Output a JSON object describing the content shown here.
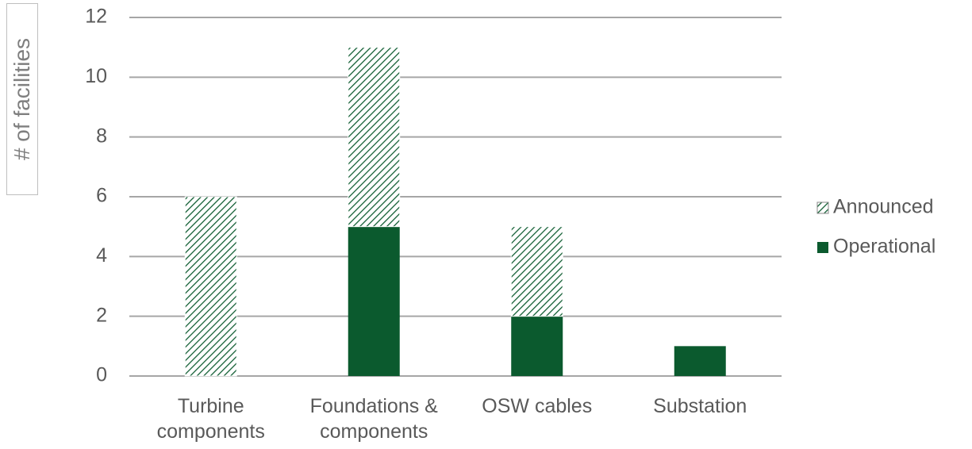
{
  "chart_data": {
    "type": "stacked_bar",
    "y_label": "# of facilities",
    "categories": [
      "Turbine components",
      "Foundations & components",
      "OSW cables",
      "Substation"
    ],
    "series": [
      {
        "name": "Operational",
        "color": "#0b5a2e",
        "pattern": "solid",
        "values": [
          0,
          5,
          2,
          1
        ]
      },
      {
        "name": "Announced",
        "color": "#0b5a2e",
        "pattern": "hatch",
        "values": [
          6,
          6,
          3,
          0
        ]
      }
    ],
    "ylim": [
      0,
      12
    ],
    "yticks": [
      0,
      2,
      4,
      6,
      8,
      10,
      12
    ],
    "grid": true,
    "legend": "right"
  }
}
